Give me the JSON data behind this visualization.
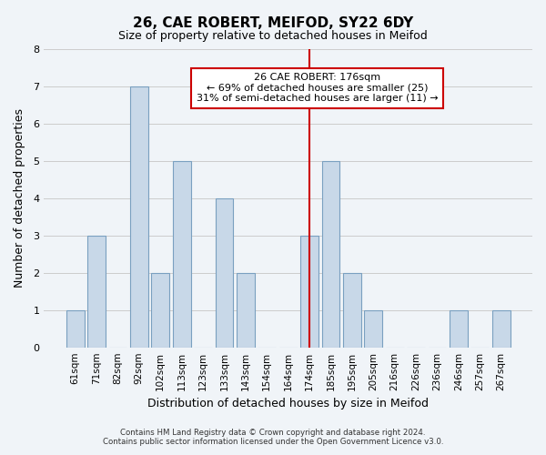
{
  "title": "26, CAE ROBERT, MEIFOD, SY22 6DY",
  "subtitle": "Size of property relative to detached houses in Meifod",
  "xlabel": "Distribution of detached houses by size in Meifod",
  "ylabel": "Number of detached properties",
  "bins": [
    "61sqm",
    "71sqm",
    "82sqm",
    "92sqm",
    "102sqm",
    "113sqm",
    "123sqm",
    "133sqm",
    "143sqm",
    "154sqm",
    "164sqm",
    "174sqm",
    "185sqm",
    "195sqm",
    "205sqm",
    "216sqm",
    "226sqm",
    "236sqm",
    "246sqm",
    "257sqm",
    "267sqm"
  ],
  "counts": [
    1,
    3,
    0,
    7,
    2,
    5,
    0,
    4,
    2,
    0,
    0,
    3,
    5,
    2,
    1,
    0,
    0,
    0,
    1,
    0,
    1
  ],
  "bar_color": "#c8d8e8",
  "bar_edge_color": "#7aa0c0",
  "marker_value": "174sqm",
  "marker_index": 11,
  "marker_color": "#cc0000",
  "annotation_title": "26 CAE ROBERT: 176sqm",
  "annotation_line1": "← 69% of detached houses are smaller (25)",
  "annotation_line2": "31% of semi-detached houses are larger (11) →",
  "annotation_box_color": "#ffffff",
  "annotation_box_edge": "#cc0000",
  "ylim": [
    0,
    8
  ],
  "yticks": [
    0,
    1,
    2,
    3,
    4,
    5,
    6,
    7,
    8
  ],
  "grid_color": "#cccccc",
  "bg_color": "#f0f4f8",
  "footnote1": "Contains HM Land Registry data © Crown copyright and database right 2024.",
  "footnote2": "Contains public sector information licensed under the Open Government Licence v3.0."
}
